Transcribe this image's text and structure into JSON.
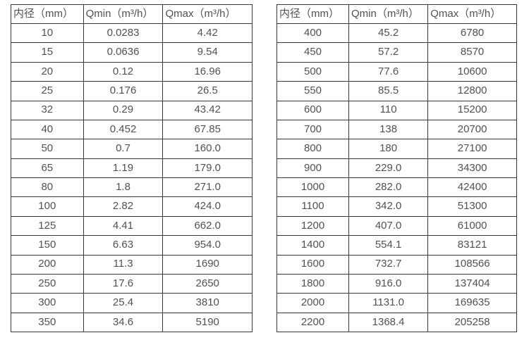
{
  "page": {
    "background": "#ffffff",
    "border_color": "#373737",
    "text_color": "#515151"
  },
  "tables": [
    {
      "name": "flow-spec-table-small-diameters",
      "headers": [
        "内径（mm）",
        "Qmin（m³/h）",
        "Qmax（m³/h）"
      ],
      "rows": [
        [
          "10",
          "0.0283",
          "4.42"
        ],
        [
          "15",
          "0.0636",
          "9.54"
        ],
        [
          "20",
          "0.12",
          "16.96"
        ],
        [
          "25",
          "0.176",
          "26.5"
        ],
        [
          "32",
          "0.29",
          "43.42"
        ],
        [
          "40",
          "0.452",
          "67.85"
        ],
        [
          "50",
          "0.7",
          "160.0"
        ],
        [
          "65",
          "1.19",
          "179.0"
        ],
        [
          "80",
          "1.8",
          "271.0"
        ],
        [
          "100",
          "2.82",
          "424.0"
        ],
        [
          "125",
          "4.41",
          "662.0"
        ],
        [
          "150",
          "6.63",
          "954.0"
        ],
        [
          "200",
          "11.3",
          "1690"
        ],
        [
          "250",
          "17.6",
          "2650"
        ],
        [
          "300",
          "25.4",
          "3810"
        ],
        [
          "350",
          "34.6",
          "5190"
        ]
      ]
    },
    {
      "name": "flow-spec-table-large-diameters",
      "headers": [
        "内径（mm）",
        "Qmin（m³/h）",
        "Qmax（m³/h）"
      ],
      "rows": [
        [
          "400",
          "45.2",
          "6780"
        ],
        [
          "450",
          "57.2",
          "8570"
        ],
        [
          "500",
          "77.6",
          "10600"
        ],
        [
          "550",
          "85.5",
          "12800"
        ],
        [
          "600",
          "110",
          "15200"
        ],
        [
          "700",
          "138",
          "20700"
        ],
        [
          "800",
          "180",
          "27100"
        ],
        [
          "900",
          "229.0",
          "34300"
        ],
        [
          "1000",
          "282.0",
          "42400"
        ],
        [
          "1100",
          "342.0",
          "51300"
        ],
        [
          "1200",
          "407.0",
          "61000"
        ],
        [
          "1400",
          "554.1",
          "83121"
        ],
        [
          "1600",
          "732.7",
          "108566"
        ],
        [
          "1800",
          "916.0",
          "137404"
        ],
        [
          "2000",
          "1131.0",
          "169635"
        ],
        [
          "2200",
          "1368.4",
          "205258"
        ]
      ]
    }
  ],
  "chart_data": [
    {
      "type": "table",
      "title": "Flow meter specification — small inner diameters",
      "columns": [
        "内径（mm）",
        "Qmin（m³/h）",
        "Qmax（m³/h）"
      ],
      "rows": [
        [
          10,
          0.0283,
          4.42
        ],
        [
          15,
          0.0636,
          9.54
        ],
        [
          20,
          0.12,
          16.96
        ],
        [
          25,
          0.176,
          26.5
        ],
        [
          32,
          0.29,
          43.42
        ],
        [
          40,
          0.452,
          67.85
        ],
        [
          50,
          0.7,
          160.0
        ],
        [
          65,
          1.19,
          179.0
        ],
        [
          80,
          1.8,
          271.0
        ],
        [
          100,
          2.82,
          424.0
        ],
        [
          125,
          4.41,
          662.0
        ],
        [
          150,
          6.63,
          954.0
        ],
        [
          200,
          11.3,
          1690
        ],
        [
          250,
          17.6,
          2650
        ],
        [
          300,
          25.4,
          3810
        ],
        [
          350,
          34.6,
          5190
        ]
      ]
    },
    {
      "type": "table",
      "title": "Flow meter specification — large inner diameters",
      "columns": [
        "内径（mm）",
        "Qmin（m³/h）",
        "Qmax（m³/h）"
      ],
      "rows": [
        [
          400,
          45.2,
          6780
        ],
        [
          450,
          57.2,
          8570
        ],
        [
          500,
          77.6,
          10600
        ],
        [
          550,
          85.5,
          12800
        ],
        [
          600,
          110,
          15200
        ],
        [
          700,
          138,
          20700
        ],
        [
          800,
          180,
          27100
        ],
        [
          900,
          229.0,
          34300
        ],
        [
          1000,
          282.0,
          42400
        ],
        [
          1100,
          342.0,
          51300
        ],
        [
          1200,
          407.0,
          61000
        ],
        [
          1400,
          554.1,
          83121
        ],
        [
          1600,
          732.7,
          108566
        ],
        [
          1800,
          916.0,
          137404
        ],
        [
          2000,
          1131.0,
          169635
        ],
        [
          2200,
          1368.4,
          205258
        ]
      ]
    }
  ]
}
